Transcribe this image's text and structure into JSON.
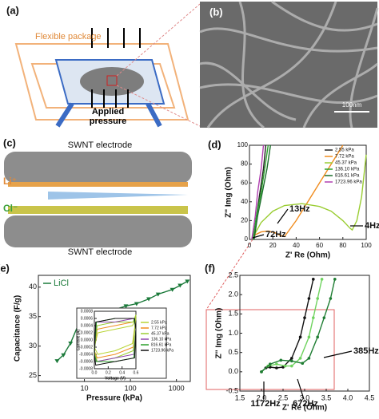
{
  "panels": {
    "a": {
      "label": "(a)",
      "package": "Flexible package",
      "pressure": "Applied pressure"
    },
    "b": {
      "label": "(b)",
      "scale": "100nm"
    },
    "c": {
      "label": "(c)",
      "top_electrode": "SWNT electrode",
      "bottom_electrode": "SWNT electrode",
      "cation": "Li⁺",
      "anion": "Cl⁻"
    }
  },
  "chart_data": [
    {
      "type": "line",
      "label": "(d)",
      "xlabel": "Z' Re (Ohm)",
      "ylabel": "Z'' Img (Ohm)",
      "xlim": [
        0,
        100
      ],
      "xticks": [
        0,
        20,
        40,
        60,
        80,
        100
      ],
      "ylim": [
        0,
        100
      ],
      "yticks": [
        0,
        20,
        40,
        60,
        80,
        100
      ],
      "legend": "upper right",
      "series": [
        {
          "name": "2.55 kPa",
          "color": "#222222",
          "x": [
            3,
            6,
            9,
            12,
            14
          ],
          "values": [
            0,
            25,
            50,
            75,
            100
          ]
        },
        {
          "name": "7.72 kPa",
          "color": "#f08c1e",
          "x": [
            2,
            5,
            10,
            16,
            22,
            27,
            30,
            40,
            55,
            70,
            80
          ],
          "values": [
            0,
            5,
            8,
            9,
            7,
            4,
            3,
            20,
            50,
            80,
            100
          ]
        },
        {
          "name": "45.37 kPa",
          "color": "#9acd32",
          "x": [
            2,
            10,
            20,
            30,
            45,
            60,
            70,
            80,
            86,
            88,
            92,
            96,
            100
          ],
          "values": [
            0,
            18,
            30,
            36,
            38,
            35,
            30,
            20,
            12,
            10,
            20,
            45,
            90
          ]
        },
        {
          "name": "136.10 kPa",
          "color": "#2ca02c",
          "x": [
            3,
            6,
            10,
            13,
            16
          ],
          "values": [
            0,
            25,
            50,
            75,
            100
          ]
        },
        {
          "name": "816.61 kPa",
          "color": "#1b6e2a",
          "x": [
            4,
            7,
            11,
            15,
            18
          ],
          "values": [
            0,
            25,
            50,
            75,
            100
          ]
        },
        {
          "name": "1723.96 kPa",
          "color": "#b040b0",
          "x": [
            2,
            5,
            7,
            10,
            12
          ],
          "values": [
            0,
            25,
            50,
            75,
            100
          ]
        }
      ],
      "annotations": [
        "72Hz",
        "13Hz",
        "4Hz"
      ]
    },
    {
      "type": "line",
      "label": "(e)",
      "xlabel": "Pressure (kPa)",
      "ylabel": "Capacitance (F/g)",
      "xscale": "log",
      "xlim": [
        1,
        2000
      ],
      "xticks": [
        10,
        100,
        1000
      ],
      "ylim": [
        24,
        42
      ],
      "yticks": [
        25,
        30,
        35,
        40
      ],
      "legend": "upper left",
      "marker": "triangle",
      "series": [
        {
          "name": "LiCl",
          "color": "#1b7a3a",
          "x": [
            2.55,
            3.5,
            5,
            7.72,
            10,
            20,
            45.37,
            80,
            136.1,
            250,
            400,
            816.61,
            1200,
            1723.96
          ],
          "values": [
            27.5,
            28.5,
            30.5,
            34,
            35.5,
            35.8,
            36.2,
            36.8,
            37.2,
            38,
            38.8,
            39.6,
            40.3,
            41
          ]
        }
      ]
    },
    {
      "type": "line",
      "xlabel": "Voltage (V)",
      "ylabel": "Current (A)",
      "xlim": [
        0,
        0.6
      ],
      "xticks": [
        {
          "value": 0,
          "label": "0.0"
        },
        0.2,
        0.4,
        0.6
      ],
      "ylim": [
        -0.0008,
        0.0008
      ],
      "yticks": [
        -0.0008,
        -0.0006,
        -0.0004,
        -0.0002,
        {
          "value": 0,
          "label": "0.0000"
        },
        0.0002,
        0.0004,
        0.0006,
        0.0008
      ],
      "legend": "right",
      "series": [
        {
          "name": "2.55 kPa",
          "color": "#b8d434",
          "x": [
            0,
            0.05,
            0.3,
            0.55,
            0.6,
            0.55,
            0.3,
            0.05,
            0
          ],
          "values": [
            -0.0002,
            0.0002,
            0.0003,
            0.0004,
            0.0006,
            -0.0001,
            -0.0003,
            -0.0004,
            -0.0002
          ]
        },
        {
          "name": "7.72 kPa",
          "color": "#f08c1e",
          "x": [
            0,
            0.04,
            0.3,
            0.56,
            0.6,
            0.56,
            0.3,
            0.04,
            0
          ],
          "values": [
            -0.0003,
            0.0003,
            0.0004,
            0.0005,
            0.0007,
            -0.0002,
            -0.0004,
            -0.0005,
            -0.0003
          ]
        },
        {
          "name": "45.37 kPa",
          "color": "#9acd32",
          "x": [
            0,
            0.04,
            0.3,
            0.56,
            0.6,
            0.56,
            0.3,
            0.04,
            0
          ],
          "values": [
            -0.0003,
            0.0004,
            0.0005,
            0.0005,
            0.0007,
            -0.0003,
            -0.0005,
            -0.0006,
            -0.0003
          ]
        },
        {
          "name": "136.10 kPa",
          "color": "#8e44ad",
          "x": [
            0,
            0.03,
            0.3,
            0.57,
            0.6,
            0.57,
            0.3,
            0.03,
            0
          ],
          "values": [
            -0.0004,
            0.0005,
            0.0005,
            0.0006,
            0.0003,
            -0.0004,
            -0.0005,
            -0.0006,
            -0.0004
          ]
        },
        {
          "name": "816.61 kPa",
          "color": "#2ca02c",
          "x": [
            0,
            0.03,
            0.3,
            0.57,
            0.6,
            0.57,
            0.3,
            0.03,
            0
          ],
          "values": [
            -0.0004,
            0.0005,
            0.0006,
            0.0006,
            0.0003,
            -0.0005,
            -0.0006,
            -0.0006,
            -0.0004
          ]
        },
        {
          "name": "1723.96 kPa",
          "color": "#111111",
          "x": [
            0,
            0.02,
            0.3,
            0.58,
            0.6,
            0.58,
            0.3,
            0.02,
            0
          ],
          "values": [
            -0.0004,
            0.0005,
            0.0006,
            0.0006,
            0.0003,
            -0.0005,
            -0.0006,
            -0.0007,
            -0.0004
          ]
        }
      ]
    },
    {
      "type": "line",
      "label": "(f)",
      "xlabel": "Z' Re (Ohm)",
      "ylabel": "Z'' Img (Ohm)",
      "xlim": [
        1.5,
        4.5
      ],
      "xticks": [
        1.5,
        {
          "value": 2,
          "label": "2.0"
        },
        2.5,
        {
          "value": 3,
          "label": "3.0"
        },
        3.5,
        {
          "value": 4,
          "label": "4.0"
        },
        4.5
      ],
      "ylim": [
        -0.5,
        2.5
      ],
      "yticks": [
        -0.5,
        {
          "value": 0,
          "label": "0.0"
        },
        0.5,
        {
          "value": 1,
          "label": "1.0"
        },
        1.5,
        {
          "value": 2,
          "label": "2.0"
        },
        2.5
      ],
      "marker": "circle",
      "series": [
        {
          "color": "#111111",
          "x": [
            2.0,
            2.1,
            2.2,
            2.35,
            2.5,
            2.7,
            2.9,
            3.0,
            3.1,
            3.2
          ],
          "values": [
            0,
            0.1,
            0.12,
            0.1,
            0.12,
            0.35,
            0.9,
            1.4,
            1.9,
            2.4
          ]
        },
        {
          "color": "#6fd35f",
          "x": [
            2.0,
            2.15,
            2.35,
            2.55,
            2.7,
            2.9,
            3.1,
            3.2,
            3.3,
            3.4
          ],
          "values": [
            0,
            0.15,
            0.2,
            0.15,
            0.15,
            0.35,
            0.9,
            1.4,
            1.9,
            2.4
          ]
        },
        {
          "color": "#1e7d32",
          "x": [
            2.0,
            2.2,
            2.45,
            2.7,
            2.95,
            3.1,
            3.3,
            3.45,
            3.6,
            3.7
          ],
          "values": [
            0,
            0.2,
            0.3,
            0.28,
            0.22,
            0.35,
            0.9,
            1.4,
            1.9,
            2.4
          ]
        }
      ],
      "annotations": [
        "385Hz",
        "1172Hz",
        "672Hz"
      ]
    }
  ]
}
